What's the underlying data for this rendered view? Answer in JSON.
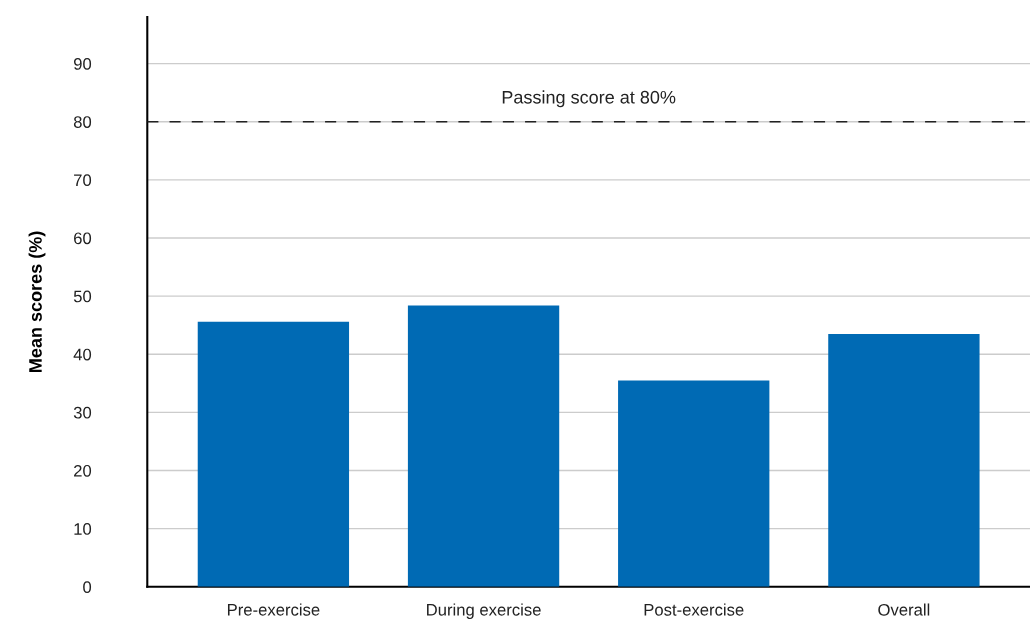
{
  "chart_data": {
    "type": "bar",
    "ylabel": "Mean scores (%)",
    "categories": [
      "Pre-exercise",
      "During exercise",
      "Post-exercise",
      "Overall"
    ],
    "values": [
      45.6,
      48.4,
      35.5,
      43.5
    ],
    "color": "#006ab4",
    "ylim": [
      0,
      98
    ],
    "yticks": [
      0,
      10,
      20,
      30,
      40,
      50,
      60,
      70,
      80,
      90
    ],
    "grid": "y",
    "ref_lines": [
      {
        "axis": "y",
        "value": 80,
        "label": "Passing score at 80%",
        "color": "#222222",
        "line_style": "dashed"
      }
    ]
  }
}
